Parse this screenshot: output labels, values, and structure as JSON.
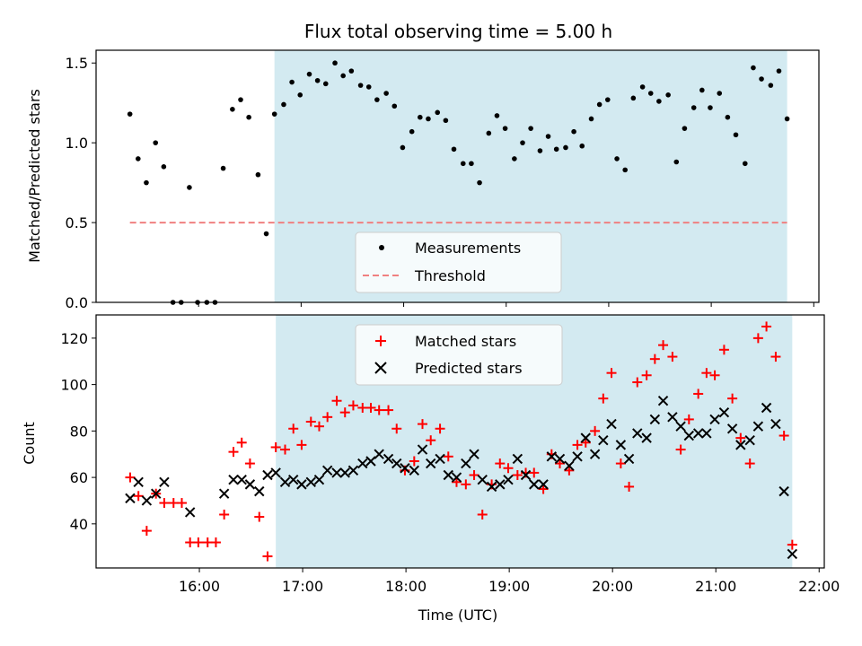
{
  "chart_data": [
    {
      "type": "scatter",
      "title": "Flux total observing time = 5.00 h",
      "xlabel": "",
      "ylabel": "Matched/Predicted stars",
      "ylim": [
        0,
        1.58
      ],
      "xlim": [
        15.0,
        22.05
      ],
      "yticks": [
        "0.0",
        "0.5",
        "1.0",
        "1.5"
      ],
      "ytick_values": [
        0,
        0.5,
        1.0,
        1.5
      ],
      "shaded_span": [
        16.74,
        21.74
      ],
      "shade_color": "#d3eaf1",
      "legend_position": "lower-center",
      "series": [
        {
          "name": "Measurements",
          "marker": "dot",
          "color": "#000000",
          "x": [
            15.33,
            15.41,
            15.49,
            15.58,
            15.66,
            15.75,
            15.83,
            15.91,
            15.99,
            16.08,
            16.16,
            16.24,
            16.33,
            16.41,
            16.49,
            16.58,
            16.66,
            16.74,
            16.83,
            16.91,
            16.99,
            17.08,
            17.16,
            17.24,
            17.33,
            17.41,
            17.49,
            17.58,
            17.66,
            17.74,
            17.83,
            17.91,
            17.99,
            18.08,
            18.16,
            18.24,
            18.33,
            18.41,
            18.49,
            18.58,
            18.66,
            18.74,
            18.83,
            18.91,
            18.99,
            19.08,
            19.16,
            19.24,
            19.33,
            19.41,
            19.49,
            19.58,
            19.66,
            19.74,
            19.83,
            19.91,
            19.99,
            20.08,
            20.16,
            20.24,
            20.33,
            20.41,
            20.49,
            20.58,
            20.66,
            20.74,
            20.83,
            20.91,
            20.99,
            21.08,
            21.16,
            21.24,
            21.33,
            21.41,
            21.49,
            21.58,
            21.66,
            21.74
          ],
          "y": [
            1.18,
            0.9,
            0.75,
            1.0,
            0.85,
            0.0,
            0.0,
            0.72,
            0.0,
            0.0,
            0.0,
            0.84,
            1.21,
            1.27,
            1.16,
            0.8,
            0.43,
            1.18,
            1.24,
            1.38,
            1.3,
            1.43,
            1.39,
            1.37,
            1.5,
            1.42,
            1.45,
            1.36,
            1.35,
            1.27,
            1.31,
            1.23,
            0.97,
            1.07,
            1.16,
            1.15,
            1.19,
            1.14,
            0.96,
            0.87,
            0.87,
            0.75,
            1.06,
            1.17,
            1.09,
            0.9,
            1.0,
            1.09,
            0.95,
            1.04,
            0.96,
            0.97,
            1.07,
            0.98,
            1.15,
            1.24,
            1.27,
            0.9,
            0.83,
            1.28,
            1.35,
            1.31,
            1.26,
            1.3,
            0.88,
            1.09,
            1.22,
            1.33,
            1.22,
            1.31,
            1.16,
            1.05,
            0.87,
            1.47,
            1.4,
            1.36,
            1.45,
            1.15
          ]
        },
        {
          "name": "Threshold",
          "marker": "dashed-line",
          "color": "#f08080",
          "x": [
            15.33,
            21.74
          ],
          "y": [
            0.5,
            0.5
          ]
        }
      ]
    },
    {
      "type": "scatter",
      "title": "",
      "xlabel": "Time (UTC)",
      "ylabel": "Count",
      "ylim": [
        21,
        130
      ],
      "xlim": [
        15.0,
        22.05
      ],
      "yticks": [
        "40",
        "60",
        "80",
        "100",
        "120"
      ],
      "ytick_values": [
        40,
        60,
        80,
        100,
        120
      ],
      "xticks": [
        "16:00",
        "17:00",
        "18:00",
        "19:00",
        "20:00",
        "21:00",
        "22:00"
      ],
      "xtick_values": [
        16,
        17,
        18,
        19,
        20,
        21,
        22
      ],
      "shaded_span": [
        16.74,
        21.74
      ],
      "shade_color": "#d3eaf1",
      "legend_position": "upper-center",
      "series": [
        {
          "name": "Matched stars",
          "marker": "plus",
          "color": "#ff0000",
          "x": [
            15.33,
            15.41,
            15.49,
            15.58,
            15.66,
            15.75,
            15.83,
            15.91,
            15.99,
            16.08,
            16.16,
            16.24,
            16.33,
            16.41,
            16.49,
            16.58,
            16.66,
            16.74,
            16.83,
            16.91,
            16.99,
            17.08,
            17.16,
            17.24,
            17.33,
            17.41,
            17.49,
            17.58,
            17.66,
            17.74,
            17.83,
            17.91,
            17.99,
            18.08,
            18.16,
            18.24,
            18.33,
            18.41,
            18.49,
            18.58,
            18.66,
            18.74,
            18.83,
            18.91,
            18.99,
            19.08,
            19.16,
            19.24,
            19.33,
            19.41,
            19.49,
            19.58,
            19.66,
            19.74,
            19.83,
            19.91,
            19.99,
            20.08,
            20.16,
            20.24,
            20.33,
            20.41,
            20.49,
            20.58,
            20.66,
            20.74,
            20.83,
            20.91,
            20.99,
            21.08,
            21.16,
            21.24,
            21.33,
            21.41,
            21.49,
            21.58,
            21.66,
            21.74
          ],
          "y": [
            60,
            52,
            37,
            53,
            49,
            49,
            49,
            32,
            32,
            32,
            32,
            44,
            71,
            75,
            66,
            43,
            26,
            73,
            72,
            81,
            74,
            84,
            82,
            86,
            93,
            88,
            91,
            90,
            90,
            89,
            89,
            81,
            63,
            67,
            83,
            76,
            81,
            69,
            58,
            57,
            61,
            44,
            57,
            66,
            64,
            61,
            62,
            62,
            55,
            70,
            66,
            63,
            74,
            75,
            80,
            94,
            105,
            66,
            56,
            101,
            104,
            111,
            117,
            112,
            72,
            85,
            96,
            105,
            104,
            115,
            94,
            77,
            66,
            120,
            125,
            112,
            78,
            31
          ]
        },
        {
          "name": "Predicted stars",
          "marker": "x",
          "color": "#000000",
          "x": [
            15.33,
            15.41,
            15.49,
            15.58,
            15.66,
            15.91,
            16.24,
            16.33,
            16.41,
            16.49,
            16.58,
            16.66,
            16.74,
            16.83,
            16.91,
            16.99,
            17.08,
            17.16,
            17.24,
            17.33,
            17.41,
            17.49,
            17.58,
            17.66,
            17.74,
            17.83,
            17.91,
            17.99,
            18.08,
            18.16,
            18.24,
            18.33,
            18.41,
            18.49,
            18.58,
            18.66,
            18.74,
            18.83,
            18.91,
            18.99,
            19.08,
            19.16,
            19.24,
            19.33,
            19.41,
            19.49,
            19.58,
            19.66,
            19.74,
            19.83,
            19.91,
            19.99,
            20.08,
            20.16,
            20.24,
            20.33,
            20.41,
            20.49,
            20.58,
            20.66,
            20.74,
            20.83,
            20.91,
            20.99,
            21.08,
            21.16,
            21.24,
            21.33,
            21.41,
            21.49,
            21.58,
            21.66,
            21.74
          ],
          "y": [
            51,
            58,
            50,
            53,
            58,
            45,
            53,
            59,
            59,
            57,
            54,
            61,
            62,
            58,
            59,
            57,
            58,
            59,
            63,
            62,
            62,
            63,
            66,
            67,
            70,
            68,
            66,
            64,
            63,
            72,
            66,
            68,
            61,
            60,
            66,
            70,
            59,
            56,
            57,
            59,
            68,
            61,
            57,
            57,
            69,
            68,
            65,
            69,
            77,
            70,
            76,
            83,
            74,
            68,
            79,
            77,
            85,
            93,
            86,
            82,
            78,
            79,
            79,
            85,
            88,
            81,
            74,
            76,
            82,
            90,
            83,
            54,
            27
          ]
        }
      ]
    }
  ]
}
